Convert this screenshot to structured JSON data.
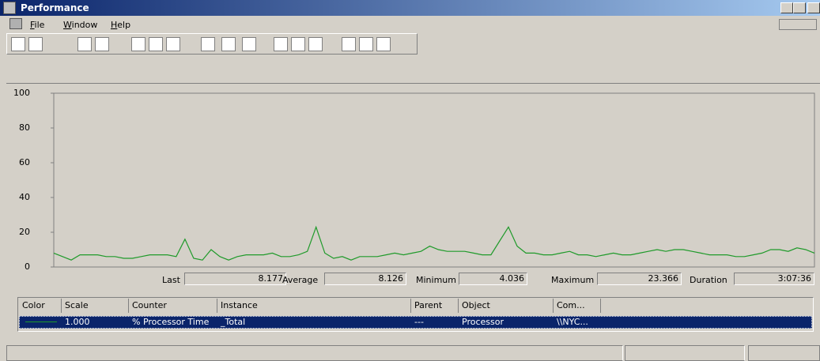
{
  "window": {
    "title": "Performance"
  },
  "menu": [
    "File",
    "Window",
    "Help"
  ],
  "chart_data": {
    "type": "line",
    "ylim": [
      0,
      100
    ],
    "yticks": [
      0,
      20,
      40,
      60,
      80,
      100
    ],
    "grid": false,
    "series": [
      {
        "color": "#1f9a2a",
        "values": [
          8,
          6,
          4,
          7,
          7,
          7,
          6,
          6,
          5,
          5,
          6,
          7,
          7,
          7,
          6,
          16,
          5,
          4,
          10,
          6,
          4,
          6,
          7,
          7,
          7,
          8,
          6,
          6,
          7,
          9,
          23,
          8,
          5,
          6,
          4,
          6,
          6,
          6,
          7,
          8,
          7,
          8,
          9,
          12,
          10,
          9,
          9,
          9,
          8,
          7,
          7,
          15,
          23,
          12,
          8,
          8,
          7,
          7,
          8,
          9,
          7,
          7,
          6,
          7,
          8,
          7,
          7,
          8,
          9,
          10,
          9,
          10,
          10,
          9,
          8,
          7,
          7,
          7,
          6,
          6,
          7,
          8,
          10,
          10,
          9,
          11,
          10,
          8
        ]
      }
    ]
  },
  "stats": [
    {
      "label": "Last",
      "value": 8.177
    },
    {
      "label": "Average",
      "value": 8.126
    },
    {
      "label": "Minimum",
      "value": 4.036
    },
    {
      "label": "Maximum",
      "value": 23.366
    },
    {
      "label": "Duration",
      "value": "3:07:36"
    }
  ],
  "legend_table": {
    "columns": [
      "Color",
      "Scale",
      "Counter",
      "Instance",
      "Parent",
      "Object",
      "Com..."
    ],
    "row": {
      "scale": "1.000",
      "counter": "% Processor Time",
      "instance": "_Total",
      "parent": "---",
      "object": "Processor",
      "computer": "\\\\NYC..."
    }
  }
}
